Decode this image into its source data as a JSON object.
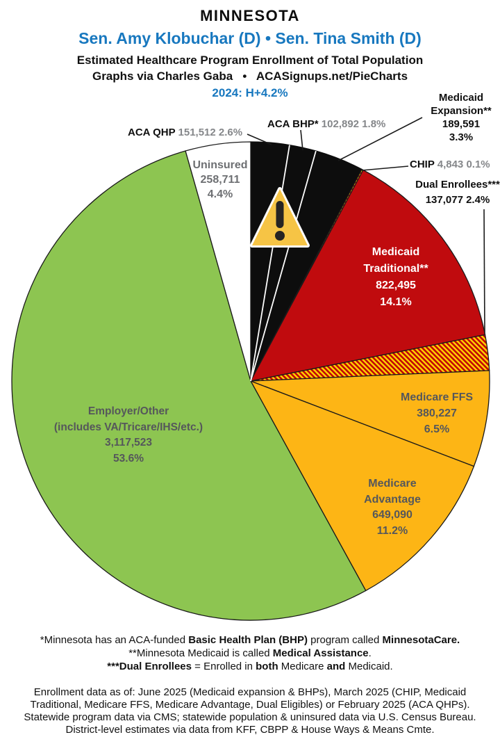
{
  "header": {
    "state": "MINNESOTA",
    "senators": "Sen. Amy Klobuchar (D) • Sen. Tina Smith (D)",
    "subtitle1": "Estimated Healthcare Program Enrollment of Total Population",
    "subtitle2": "Graphs via Charles Gaba   •   ACASignups.net/PieCharts",
    "year_line": "2024: H+4.2%"
  },
  "colors": {
    "accent_blue": "#1878BF",
    "black_slice": "#0d0d0d",
    "red_slice": "#C00B0E",
    "gold_slice": "#FDB515",
    "green_slice": "#8DC551",
    "white_slice": "#FFFFFF",
    "hatch_red": "#C20606",
    "hatch_yellow": "#FFD400",
    "label_gray": "#85878A",
    "inner_label_gray": "#55575B",
    "warning_gold": "#F6C445"
  },
  "icons": {
    "warning": "warning-triangle-exclamation"
  },
  "chart_data": {
    "type": "pie",
    "title": "Estimated Healthcare Program Enrollment of Total Population",
    "state": "Minnesota",
    "year_note": "2024: H+4.2%",
    "start_angle_deg": 0,
    "direction": "clockwise",
    "legend_position": "around-pie",
    "slices": [
      {
        "label": "ACA QHP",
        "value": 151512,
        "pct": 2.6,
        "color": "#0d0d0d"
      },
      {
        "label": "ACA BHP*",
        "value": 102892,
        "pct": 1.8,
        "color": "#0d0d0d"
      },
      {
        "label": "Medicaid Expansion**",
        "value": 189591,
        "pct": 3.3,
        "color": "#0d0d0d"
      },
      {
        "label": "CHIP",
        "value": 4843,
        "pct": 0.1,
        "color": "hatch"
      },
      {
        "label": "Medicaid Traditional**",
        "value": 822495,
        "pct": 14.1,
        "color": "#C00B0E"
      },
      {
        "label": "Dual Enrollees***",
        "value": 137077,
        "pct": 2.4,
        "color": "hatch"
      },
      {
        "label": "Medicare FFS",
        "value": 380227,
        "pct": 6.5,
        "color": "#FDB515"
      },
      {
        "label": "Medicare Advantage",
        "value": 649090,
        "pct": 11.2,
        "color": "#FDB515"
      },
      {
        "label": "Employer/Other (includes VA/Tricare/IHS/etc.)",
        "value": 3117523,
        "pct": 53.6,
        "color": "#8DC551"
      },
      {
        "label": "Uninsured",
        "value": 258711,
        "pct": 4.4,
        "color": "#FFFFFF"
      }
    ]
  },
  "labels": {
    "qhp": [
      {
        "t": "ACA QHP ",
        "c": "name"
      },
      {
        "t": "151,512 2.6%",
        "c": "num"
      }
    ],
    "bhp": [
      {
        "t": "ACA BHP* ",
        "c": "name"
      },
      {
        "t": "102,892 1.8%",
        "c": "num"
      }
    ],
    "chip": [
      {
        "t": "CHIP ",
        "c": "name"
      },
      {
        "t": "4,843 0.1%",
        "c": "num"
      }
    ],
    "expansion": [
      "Medicaid",
      "Expansion**",
      "189,591",
      "3.3%"
    ],
    "dual": [
      "Dual Enrollees***",
      "137,077 2.4%"
    ],
    "uninsured": [
      "Uninsured",
      "258,711",
      "4.4%"
    ],
    "traditional": [
      "Medicaid",
      "Traditional**",
      "822,495",
      "14.1%"
    ],
    "ffs": [
      "Medicare FFS",
      "380,227",
      "6.5%"
    ],
    "ma": [
      "Medicare",
      "Advantage",
      "649,090",
      "11.2%"
    ],
    "employer": [
      "Employer/Other",
      "(includes VA/Tricare/IHS/etc.)",
      "3,117,523",
      "53.6%"
    ]
  },
  "footnotes": {
    "lines": [
      [
        {
          "t": "*Minnesota has an ACA-funded "
        },
        {
          "t": "Basic Health Plan (BHP)",
          "b": true
        },
        {
          "t": " program called "
        },
        {
          "t": "MinnesotaCare.",
          "b": true
        }
      ],
      [
        {
          "t": "**Minnesota Medicaid is called "
        },
        {
          "t": "Medical Assistance",
          "b": true
        },
        {
          "t": "."
        }
      ],
      [
        {
          "t": "***Dual Enrollees",
          "b": true
        },
        {
          "t": " = Enrolled in "
        },
        {
          "t": "both",
          "b": true
        },
        {
          "t": " Medicare "
        },
        {
          "t": "and",
          "b": true
        },
        {
          "t": " Medicaid."
        }
      ]
    ]
  },
  "source": {
    "lines": [
      "Enrollment data as of: June 2025 (Medicaid expansion & BHPs), March 2025 (CHIP, Medicaid",
      "Traditional, Medicare FFS, Medicare Advantage, Dual Eligibles) or February 2025 (ACA QHPs).",
      "Statewide program data via CMS; statewide population & uninsured data via U.S. Census Bureau.",
      "District-level estimates via data from KFF, CBPP & House Ways & Means Cmte."
    ]
  }
}
